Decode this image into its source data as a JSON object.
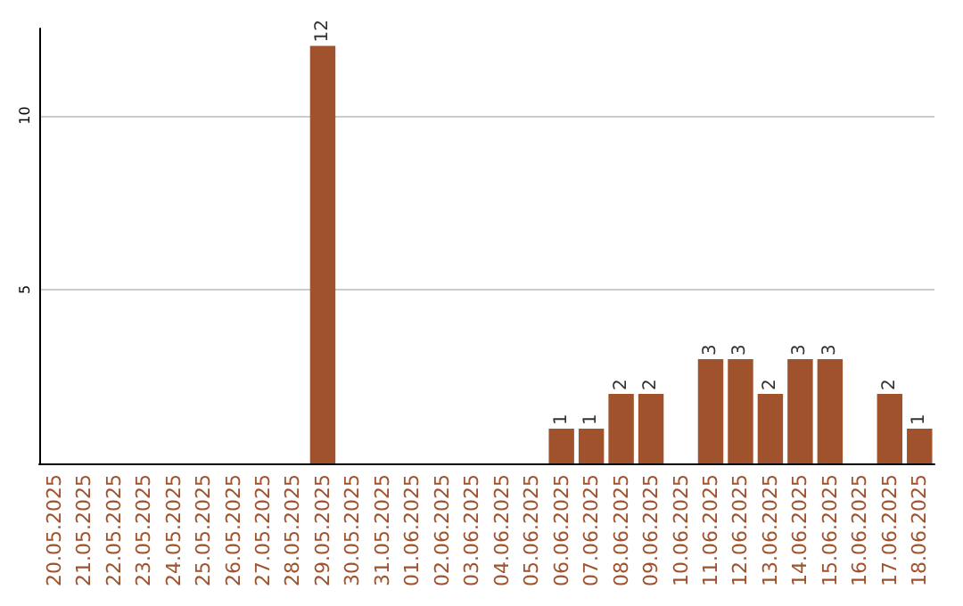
{
  "chart_data": {
    "type": "bar",
    "categories": [
      "20.05.2025",
      "21.05.2025",
      "22.05.2025",
      "23.05.2025",
      "24.05.2025",
      "25.05.2025",
      "26.05.2025",
      "27.05.2025",
      "28.05.2025",
      "29.05.2025",
      "30.05.2025",
      "31.05.2025",
      "01.06.2025",
      "02.06.2025",
      "03.06.2025",
      "04.06.2025",
      "05.06.2025",
      "06.06.2025",
      "07.06.2025",
      "08.06.2025",
      "09.06.2025",
      "10.06.2025",
      "11.06.2025",
      "12.06.2025",
      "13.06.2025",
      "14.06.2025",
      "15.06.2025",
      "16.06.2025",
      "17.06.2025",
      "18.06.2025"
    ],
    "values": [
      0,
      0,
      0,
      0,
      0,
      0,
      0,
      0,
      0,
      12,
      0,
      0,
      0,
      0,
      0,
      0,
      0,
      1,
      1,
      2,
      2,
      0,
      3,
      3,
      2,
      3,
      3,
      0,
      2,
      1
    ],
    "value_labels": [
      null,
      null,
      null,
      null,
      null,
      null,
      null,
      null,
      null,
      "12",
      null,
      null,
      null,
      null,
      null,
      null,
      null,
      "1",
      "1",
      "2",
      "2",
      null,
      "3",
      "3",
      "2",
      "3",
      "3",
      null,
      "2",
      "1"
    ],
    "color": "#a0522d",
    "ylim": [
      0,
      12.5
    ],
    "yticks": [
      5,
      10
    ],
    "grid": "y"
  }
}
